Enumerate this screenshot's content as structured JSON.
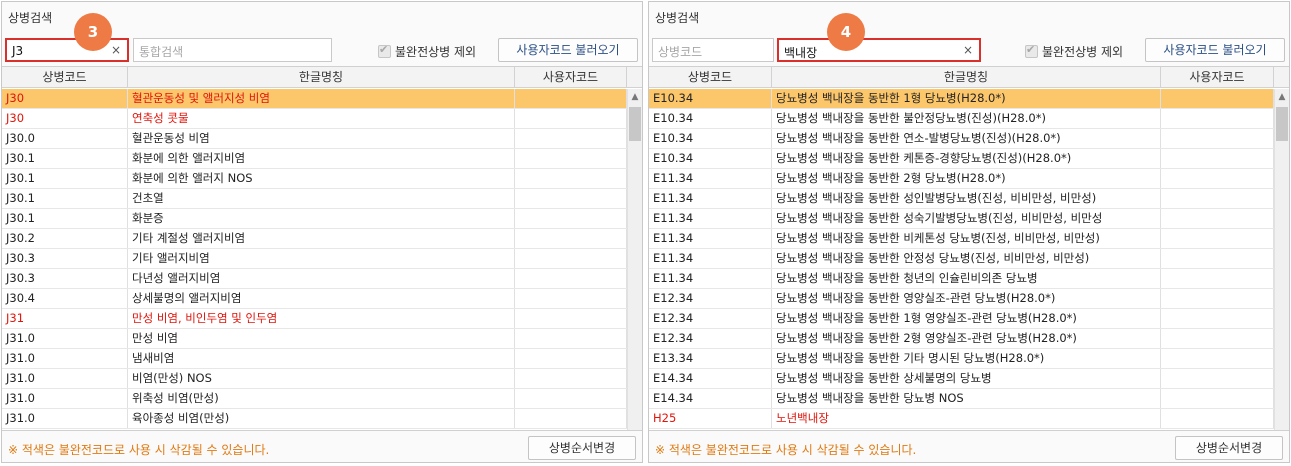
{
  "left": {
    "title": "상병검색",
    "search_value": "J3",
    "search_clear": "×",
    "integrated_placeholder": "통합검색",
    "exclude_label": "불완전상병 제외",
    "load_user_code": "사용자코드 불러오기",
    "badge": "3",
    "columns": [
      "상병코드",
      "한글명칭",
      "사용자코드"
    ],
    "rows": [
      {
        "code": "J30",
        "name": "혈관운동성 및 앨러지성 비염",
        "user": "",
        "red": true,
        "sel": true
      },
      {
        "code": "J30",
        "name": "연축성 콧물",
        "user": "",
        "red": true,
        "sel": false
      },
      {
        "code": "J30.0",
        "name": "혈관운동성 비염",
        "user": "",
        "red": false,
        "sel": false
      },
      {
        "code": "J30.1",
        "name": "화분에 의한 앨러지비염",
        "user": "",
        "red": false,
        "sel": false
      },
      {
        "code": "J30.1",
        "name": "화분에 의한 앨러지 NOS",
        "user": "",
        "red": false,
        "sel": false
      },
      {
        "code": "J30.1",
        "name": "건초열",
        "user": "",
        "red": false,
        "sel": false
      },
      {
        "code": "J30.1",
        "name": "화분증",
        "user": "",
        "red": false,
        "sel": false
      },
      {
        "code": "J30.2",
        "name": "기타 계절성 앨러지비염",
        "user": "",
        "red": false,
        "sel": false
      },
      {
        "code": "J30.3",
        "name": "기타 앨러지비염",
        "user": "",
        "red": false,
        "sel": false
      },
      {
        "code": "J30.3",
        "name": "다년성 앨러지비염",
        "user": "",
        "red": false,
        "sel": false
      },
      {
        "code": "J30.4",
        "name": "상세불명의 앨러지비염",
        "user": "",
        "red": false,
        "sel": false
      },
      {
        "code": "J31",
        "name": "만성 비염, 비인두염 및 인두염",
        "user": "",
        "red": true,
        "sel": false
      },
      {
        "code": "J31.0",
        "name": "만성 비염",
        "user": "",
        "red": false,
        "sel": false
      },
      {
        "code": "J31.0",
        "name": "냄새비염",
        "user": "",
        "red": false,
        "sel": false
      },
      {
        "code": "J31.0",
        "name": "비염(만성) NOS",
        "user": "",
        "red": false,
        "sel": false
      },
      {
        "code": "J31.0",
        "name": "위축성 비염(만성)",
        "user": "",
        "red": false,
        "sel": false
      },
      {
        "code": "J31.0",
        "name": "육아종성 비염(만성)",
        "user": "",
        "red": false,
        "sel": false
      }
    ],
    "note": "※ 적색은 불완전코드로 사용 시 삭감될 수 있습니다.",
    "order_button": "상병순서변경"
  },
  "right": {
    "title": "상병검색",
    "code_placeholder": "상병코드",
    "search_value": "백내장",
    "search_clear": "×",
    "exclude_label": "불완전상병 제외",
    "load_user_code": "사용자코드 불러오기",
    "badge": "4",
    "columns": [
      "상병코드",
      "한글명칭",
      "사용자코드"
    ],
    "rows": [
      {
        "code": "E10.34",
        "name": "당뇨병성 백내장을 동반한 1형 당뇨병(H28.0*)",
        "user": "",
        "red": false,
        "sel": true
      },
      {
        "code": "E10.34",
        "name": "당뇨병성 백내장을 동반한 불안정당뇨병(진성)(H28.0*)",
        "user": "",
        "red": false,
        "sel": false
      },
      {
        "code": "E10.34",
        "name": "당뇨병성 백내장을 동반한 연소-발병당뇨병(진성)(H28.0*)",
        "user": "",
        "red": false,
        "sel": false
      },
      {
        "code": "E10.34",
        "name": "당뇨병성 백내장을 동반한 케톤증-경향당뇨병(진성)(H28.0*)",
        "user": "",
        "red": false,
        "sel": false
      },
      {
        "code": "E11.34",
        "name": "당뇨병성 백내장을 동반한 2형 당뇨병(H28.0*)",
        "user": "",
        "red": false,
        "sel": false
      },
      {
        "code": "E11.34",
        "name": "당뇨병성 백내장을 동반한 성인발병당뇨병(진성, 비비만성, 비만성)",
        "user": "",
        "red": false,
        "sel": false
      },
      {
        "code": "E11.34",
        "name": "당뇨병성 백내장을 동반한 성숙기발병당뇨병(진성, 비비만성, 비만성",
        "user": "",
        "red": false,
        "sel": false
      },
      {
        "code": "E11.34",
        "name": "당뇨병성 백내장을 동반한 비케톤성 당뇨병(진성, 비비만성, 비만성)",
        "user": "",
        "red": false,
        "sel": false
      },
      {
        "code": "E11.34",
        "name": "당뇨병성 백내장을 동반한 안정성 당뇨병(진성, 비비만성, 비만성)",
        "user": "",
        "red": false,
        "sel": false
      },
      {
        "code": "E11.34",
        "name": "당뇨병성 백내장을 동반한 청년의 인슐린비의존 당뇨병",
        "user": "",
        "red": false,
        "sel": false
      },
      {
        "code": "E12.34",
        "name": "당뇨병성 백내장을 동반한 영양실조-관련 당뇨병(H28.0*)",
        "user": "",
        "red": false,
        "sel": false
      },
      {
        "code": "E12.34",
        "name": "당뇨병성 백내장을 동반한 1형 영양실조-관련 당뇨병(H28.0*)",
        "user": "",
        "red": false,
        "sel": false
      },
      {
        "code": "E12.34",
        "name": "당뇨병성 백내장을 동반한 2형 영양실조-관련 당뇨병(H28.0*)",
        "user": "",
        "red": false,
        "sel": false
      },
      {
        "code": "E13.34",
        "name": "당뇨병성 백내장을 동반한 기타 명시된 당뇨병(H28.0*)",
        "user": "",
        "red": false,
        "sel": false
      },
      {
        "code": "E14.34",
        "name": "당뇨병성 백내장을 동반한 상세불명의 당뇨병",
        "user": "",
        "red": false,
        "sel": false
      },
      {
        "code": "E14.34",
        "name": "당뇨병성 백내장을 동반한 당뇨병 NOS",
        "user": "",
        "red": false,
        "sel": false
      },
      {
        "code": "H25",
        "name": "노년백내장",
        "user": "",
        "red": true,
        "sel": false
      }
    ],
    "note": "※ 적색은 불완전코드로 사용 시 삭감될 수 있습니다.",
    "order_button": "상병순서변경"
  },
  "colors": {
    "selected_row": "#fcc66b",
    "incomplete_code": "#e0150b",
    "badge": "#ee7a45",
    "highlight_border": "#d9302c",
    "note": "#e07a12"
  }
}
